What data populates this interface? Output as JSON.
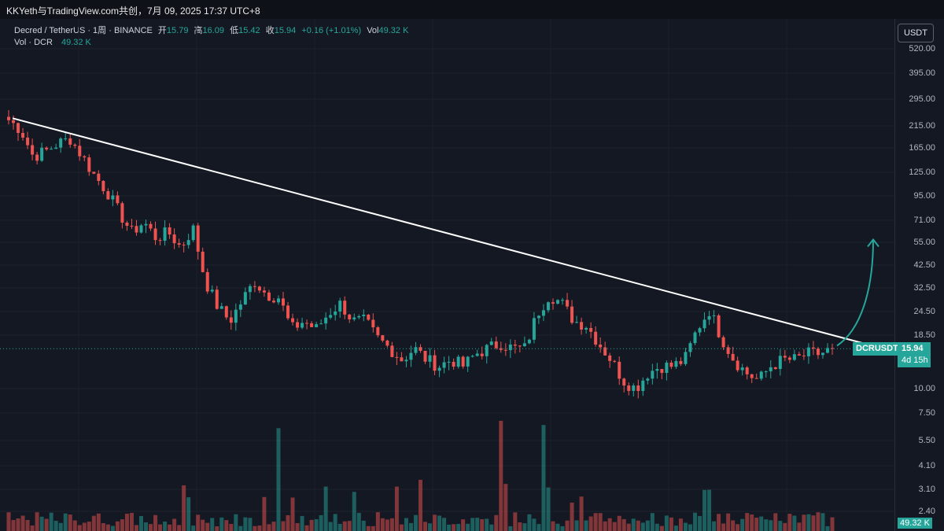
{
  "watermark": "KKYeth与TradingView.com共创，7月 09, 2025 17:37 UTC+8",
  "legend": {
    "symbol": "Decred / TetherUS · 1周 · BINANCE",
    "open_label": "开",
    "open": "15.79",
    "high_label": "高",
    "high": "16.09",
    "low_label": "低",
    "low": "15.42",
    "close_label": "收",
    "close": "15.94",
    "change": "+0.16 (+1.01%)",
    "vol_label": "Vol",
    "vol": "49.32 K",
    "vol_row_label": "Vol · DCR",
    "vol_row_value": "49.32 K"
  },
  "currency_button": "USDT",
  "price_tag": {
    "symbol": "DCRUSDT",
    "price": "15.94",
    "countdown": "4d 15h"
  },
  "volume_badge": "49.32 K",
  "colors": {
    "up": "#26a69a",
    "down": "#ef5350",
    "background": "#141823",
    "trendline": "#ffffff"
  },
  "chart_data": {
    "type": "candlestick",
    "symbol": "DCRUSDT",
    "timeframe": "1周",
    "scale": "log",
    "last_price": 15.94,
    "y_ticks": [
      520,
      395,
      295,
      215,
      165,
      125,
      95,
      71,
      55,
      42.5,
      32.5,
      24.5,
      18.5,
      10,
      7.5,
      5.5,
      4.1,
      3.1,
      2.4
    ],
    "y_tick_labels": [
      "520.00",
      "395.00",
      "295.00",
      "215.00",
      "165.00",
      "125.00",
      "95.00",
      "71.00",
      "55.00",
      "42.50",
      "32.50",
      "24.50",
      "18.50",
      "10.00",
      "7.50",
      "5.50",
      "4.10",
      "3.10",
      "2.40"
    ],
    "close_path": [
      230,
      205,
      150,
      160,
      175,
      185,
      150,
      120,
      100,
      78,
      62,
      70,
      58,
      62,
      52,
      65,
      35,
      26,
      22,
      28,
      35,
      30,
      29,
      20,
      22,
      20,
      24,
      27,
      22,
      22,
      18,
      16,
      14,
      16,
      14,
      13,
      14,
      13,
      15,
      16,
      17,
      16,
      16,
      24,
      30,
      27,
      22,
      21,
      17,
      14,
      11,
      10,
      12,
      13,
      13,
      14,
      20,
      25,
      18,
      14,
      12,
      11,
      13,
      14,
      14,
      15,
      15,
      15.9
    ],
    "trendline": [
      {
        "from_price": 235,
        "to_price": 17
      }
    ],
    "volume_spikes": [
      {
        "position": 0.33
      },
      {
        "position": 0.6
      },
      {
        "position": 0.65
      }
    ],
    "projection": "upward curved arrow"
  }
}
